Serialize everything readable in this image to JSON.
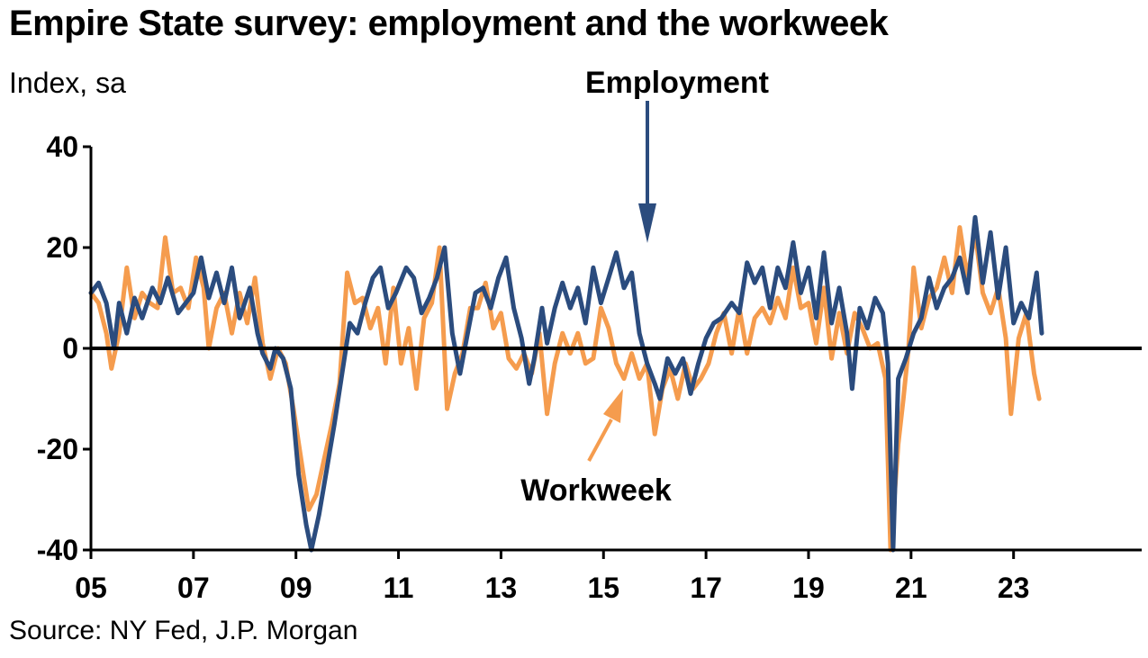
{
  "header": {
    "title": "Empire State survey: employment and the workweek",
    "subtitle": "Index, sa"
  },
  "footer": {
    "source": "Source: NY Fed, J.P. Morgan"
  },
  "colors": {
    "employment": "#2B4C7E",
    "workweek": "#F59C4E",
    "axis": "#000000"
  },
  "chart_data": {
    "type": "line",
    "title": "Empire State survey: employment and the workweek",
    "ylabel": "Index, sa",
    "xlabel": "",
    "ylim": [
      -40,
      40
    ],
    "yticks": [
      40,
      20,
      0,
      -20,
      -40
    ],
    "xlim": [
      2005,
      2025.5
    ],
    "xticks": [
      {
        "x": 2005,
        "label": "05"
      },
      {
        "x": 2007,
        "label": "07"
      },
      {
        "x": 2009,
        "label": "09"
      },
      {
        "x": 2011,
        "label": "11"
      },
      {
        "x": 2013,
        "label": "13"
      },
      {
        "x": 2015,
        "label": "15"
      },
      {
        "x": 2017,
        "label": "17"
      },
      {
        "x": 2019,
        "label": "19"
      },
      {
        "x": 2021,
        "label": "21"
      },
      {
        "x": 2023,
        "label": "23"
      }
    ],
    "annotations": [
      {
        "text": "Employment",
        "series": "Employment"
      },
      {
        "text": "Workweek",
        "series": "Workweek"
      }
    ],
    "series": [
      {
        "name": "Employment",
        "color": "#2B4C7E",
        "points": [
          [
            2005.0,
            11
          ],
          [
            2005.15,
            13
          ],
          [
            2005.3,
            9
          ],
          [
            2005.45,
            0
          ],
          [
            2005.55,
            9
          ],
          [
            2005.7,
            3
          ],
          [
            2005.85,
            10
          ],
          [
            2006.0,
            6
          ],
          [
            2006.2,
            12
          ],
          [
            2006.35,
            9
          ],
          [
            2006.5,
            14
          ],
          [
            2006.7,
            7
          ],
          [
            2006.85,
            9
          ],
          [
            2007.0,
            11
          ],
          [
            2007.15,
            18
          ],
          [
            2007.3,
            10
          ],
          [
            2007.45,
            15
          ],
          [
            2007.6,
            9
          ],
          [
            2007.75,
            16
          ],
          [
            2007.9,
            6
          ],
          [
            2008.1,
            12
          ],
          [
            2008.25,
            3
          ],
          [
            2008.35,
            -1
          ],
          [
            2008.5,
            -4
          ],
          [
            2008.6,
            0
          ],
          [
            2008.75,
            -2
          ],
          [
            2008.9,
            -8
          ],
          [
            2009.05,
            -25
          ],
          [
            2009.2,
            -35
          ],
          [
            2009.3,
            -40
          ],
          [
            2009.45,
            -33
          ],
          [
            2009.6,
            -24
          ],
          [
            2009.75,
            -15
          ],
          [
            2009.9,
            -5
          ],
          [
            2010.05,
            5
          ],
          [
            2010.2,
            3
          ],
          [
            2010.35,
            9
          ],
          [
            2010.5,
            14
          ],
          [
            2010.65,
            16
          ],
          [
            2010.8,
            8
          ],
          [
            2010.95,
            11
          ],
          [
            2011.15,
            16
          ],
          [
            2011.3,
            14
          ],
          [
            2011.45,
            7
          ],
          [
            2011.6,
            10
          ],
          [
            2011.75,
            14
          ],
          [
            2011.9,
            20
          ],
          [
            2012.05,
            3
          ],
          [
            2012.2,
            -5
          ],
          [
            2012.35,
            3
          ],
          [
            2012.5,
            11
          ],
          [
            2012.65,
            12
          ],
          [
            2012.8,
            8
          ],
          [
            2012.95,
            14
          ],
          [
            2013.1,
            18
          ],
          [
            2013.25,
            8
          ],
          [
            2013.4,
            2
          ],
          [
            2013.55,
            -7
          ],
          [
            2013.65,
            -2
          ],
          [
            2013.8,
            8
          ],
          [
            2013.9,
            1
          ],
          [
            2014.05,
            8
          ],
          [
            2014.2,
            13
          ],
          [
            2014.35,
            8
          ],
          [
            2014.5,
            12
          ],
          [
            2014.65,
            5
          ],
          [
            2014.8,
            16
          ],
          [
            2014.95,
            9
          ],
          [
            2015.1,
            14
          ],
          [
            2015.25,
            19
          ],
          [
            2015.4,
            12
          ],
          [
            2015.55,
            15
          ],
          [
            2015.7,
            3
          ],
          [
            2015.85,
            -3
          ],
          [
            2016.0,
            -7
          ],
          [
            2016.1,
            -10
          ],
          [
            2016.25,
            -2
          ],
          [
            2016.4,
            -5
          ],
          [
            2016.55,
            -2
          ],
          [
            2016.7,
            -9
          ],
          [
            2016.85,
            -3
          ],
          [
            2017.0,
            2
          ],
          [
            2017.15,
            5
          ],
          [
            2017.3,
            6
          ],
          [
            2017.5,
            9
          ],
          [
            2017.65,
            7
          ],
          [
            2017.8,
            17
          ],
          [
            2017.95,
            13
          ],
          [
            2018.1,
            16
          ],
          [
            2018.25,
            8
          ],
          [
            2018.4,
            16
          ],
          [
            2018.55,
            12
          ],
          [
            2018.7,
            21
          ],
          [
            2018.85,
            11
          ],
          [
            2019.0,
            16
          ],
          [
            2019.15,
            6
          ],
          [
            2019.3,
            19
          ],
          [
            2019.45,
            5
          ],
          [
            2019.6,
            12
          ],
          [
            2019.75,
            3
          ],
          [
            2019.85,
            -8
          ],
          [
            2020.0,
            8
          ],
          [
            2020.15,
            4
          ],
          [
            2020.3,
            10
          ],
          [
            2020.45,
            7
          ],
          [
            2020.55,
            -3
          ],
          [
            2020.65,
            -40
          ],
          [
            2020.75,
            -6
          ],
          [
            2020.9,
            -2
          ],
          [
            2021.05,
            3
          ],
          [
            2021.2,
            6
          ],
          [
            2021.35,
            14
          ],
          [
            2021.5,
            8
          ],
          [
            2021.65,
            12
          ],
          [
            2021.8,
            14
          ],
          [
            2021.95,
            18
          ],
          [
            2022.1,
            11
          ],
          [
            2022.25,
            26
          ],
          [
            2022.4,
            13
          ],
          [
            2022.55,
            23
          ],
          [
            2022.7,
            10
          ],
          [
            2022.85,
            20
          ],
          [
            2023.0,
            5
          ],
          [
            2023.15,
            9
          ],
          [
            2023.3,
            6
          ],
          [
            2023.45,
            15
          ],
          [
            2023.55,
            3
          ]
        ]
      },
      {
        "name": "Workweek",
        "color": "#F59C4E",
        "points": [
          [
            2005.0,
            11
          ],
          [
            2005.15,
            9
          ],
          [
            2005.3,
            3
          ],
          [
            2005.4,
            -4
          ],
          [
            2005.55,
            3
          ],
          [
            2005.7,
            16
          ],
          [
            2005.85,
            6
          ],
          [
            2006.0,
            11
          ],
          [
            2006.15,
            9
          ],
          [
            2006.3,
            8
          ],
          [
            2006.45,
            22
          ],
          [
            2006.6,
            11
          ],
          [
            2006.75,
            12
          ],
          [
            2006.9,
            8
          ],
          [
            2007.05,
            18
          ],
          [
            2007.2,
            12
          ],
          [
            2007.3,
            0
          ],
          [
            2007.45,
            8
          ],
          [
            2007.6,
            11
          ],
          [
            2007.75,
            3
          ],
          [
            2007.9,
            11
          ],
          [
            2008.05,
            5
          ],
          [
            2008.2,
            14
          ],
          [
            2008.35,
            1
          ],
          [
            2008.5,
            -6
          ],
          [
            2008.65,
            0
          ],
          [
            2008.8,
            -3
          ],
          [
            2008.95,
            -12
          ],
          [
            2009.1,
            -22
          ],
          [
            2009.25,
            -32
          ],
          [
            2009.4,
            -29
          ],
          [
            2009.55,
            -22
          ],
          [
            2009.7,
            -15
          ],
          [
            2009.85,
            -7
          ],
          [
            2010.0,
            15
          ],
          [
            2010.15,
            9
          ],
          [
            2010.3,
            10
          ],
          [
            2010.45,
            4
          ],
          [
            2010.6,
            8
          ],
          [
            2010.75,
            -3
          ],
          [
            2010.9,
            12
          ],
          [
            2011.05,
            -3
          ],
          [
            2011.2,
            4
          ],
          [
            2011.35,
            -8
          ],
          [
            2011.5,
            6
          ],
          [
            2011.65,
            9
          ],
          [
            2011.8,
            20
          ],
          [
            2011.95,
            -12
          ],
          [
            2012.1,
            -5
          ],
          [
            2012.25,
            -1
          ],
          [
            2012.4,
            8
          ],
          [
            2012.55,
            8
          ],
          [
            2012.7,
            13
          ],
          [
            2012.85,
            4
          ],
          [
            2013.0,
            7
          ],
          [
            2013.15,
            -2
          ],
          [
            2013.3,
            -4
          ],
          [
            2013.45,
            -1
          ],
          [
            2013.6,
            -5
          ],
          [
            2013.75,
            3
          ],
          [
            2013.9,
            -13
          ],
          [
            2014.05,
            -3
          ],
          [
            2014.2,
            3
          ],
          [
            2014.35,
            -1
          ],
          [
            2014.5,
            3
          ],
          [
            2014.65,
            -3
          ],
          [
            2014.8,
            -2
          ],
          [
            2014.95,
            8
          ],
          [
            2015.1,
            4
          ],
          [
            2015.25,
            -3
          ],
          [
            2015.4,
            -6
          ],
          [
            2015.55,
            -1
          ],
          [
            2015.7,
            -6
          ],
          [
            2015.85,
            -3
          ],
          [
            2016.0,
            -17
          ],
          [
            2016.15,
            -8
          ],
          [
            2016.3,
            -4
          ],
          [
            2016.45,
            -10
          ],
          [
            2016.6,
            -3
          ],
          [
            2016.75,
            -8
          ],
          [
            2016.9,
            -6
          ],
          [
            2017.05,
            -3
          ],
          [
            2017.2,
            3
          ],
          [
            2017.35,
            7
          ],
          [
            2017.5,
            -1
          ],
          [
            2017.65,
            8
          ],
          [
            2017.8,
            -1
          ],
          [
            2017.95,
            6
          ],
          [
            2018.1,
            8
          ],
          [
            2018.25,
            5
          ],
          [
            2018.4,
            10
          ],
          [
            2018.55,
            6
          ],
          [
            2018.7,
            16
          ],
          [
            2018.85,
            8
          ],
          [
            2019.0,
            9
          ],
          [
            2019.15,
            1
          ],
          [
            2019.3,
            12
          ],
          [
            2019.45,
            -2
          ],
          [
            2019.6,
            7
          ],
          [
            2019.75,
            -1
          ],
          [
            2019.9,
            7
          ],
          [
            2020.05,
            4
          ],
          [
            2020.2,
            0
          ],
          [
            2020.35,
            1
          ],
          [
            2020.5,
            -6
          ],
          [
            2020.6,
            -40
          ],
          [
            2020.75,
            -19
          ],
          [
            2020.85,
            -10
          ],
          [
            2020.95,
            0
          ],
          [
            2021.05,
            16
          ],
          [
            2021.2,
            4
          ],
          [
            2021.35,
            10
          ],
          [
            2021.5,
            12
          ],
          [
            2021.65,
            18
          ],
          [
            2021.8,
            11
          ],
          [
            2021.95,
            24
          ],
          [
            2022.1,
            14
          ],
          [
            2022.25,
            23
          ],
          [
            2022.4,
            11
          ],
          [
            2022.55,
            7
          ],
          [
            2022.7,
            12
          ],
          [
            2022.85,
            2
          ],
          [
            2022.95,
            -13
          ],
          [
            2023.1,
            2
          ],
          [
            2023.25,
            7
          ],
          [
            2023.4,
            -5
          ],
          [
            2023.5,
            -10
          ]
        ]
      }
    ]
  }
}
